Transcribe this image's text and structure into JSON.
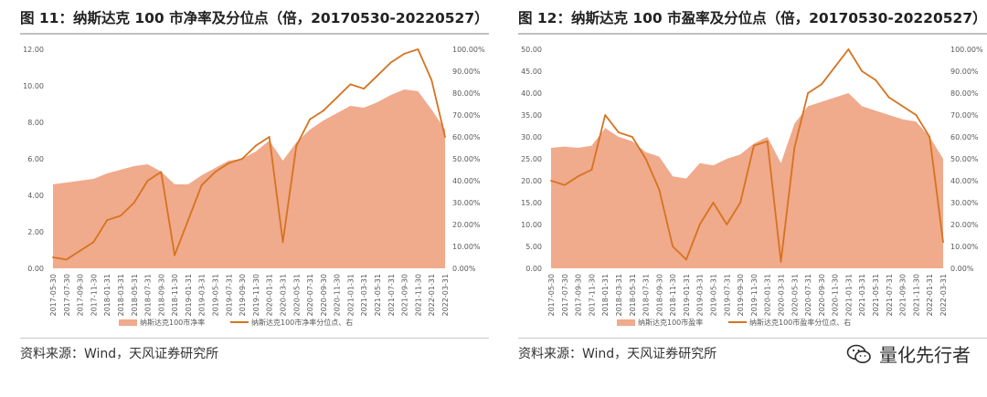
{
  "colors": {
    "area": "#f0aa8c",
    "line": "#d6731f",
    "text": "#595959"
  },
  "charts": [
    {
      "title": "图 11：纳斯达克 100 市净率及分位点（倍，20170530-20220527）",
      "source": "资料来源：Wind，天风证券研究所",
      "chart_data": {
        "type": "area",
        "x": [
          "2017-05-30",
          "2017-07-30",
          "2017-09-30",
          "2017-11-30",
          "2018-01-31",
          "2018-03-31",
          "2018-05-31",
          "2018-07-31",
          "2018-09-30",
          "2018-11-30",
          "2019-01-31",
          "2019-03-31",
          "2019-05-31",
          "2019-07-31",
          "2019-09-30",
          "2019-11-30",
          "2020-01-31",
          "2020-03-31",
          "2020-05-31",
          "2020-07-31",
          "2020-09-30",
          "2020-11-30",
          "2021-01-31",
          "2021-03-31",
          "2021-05-31",
          "2021-07-31",
          "2021-09-30",
          "2021-11-30",
          "2022-01-31",
          "2022-03-31"
        ],
        "y_left_ticks": [
          "0.00",
          "2.00",
          "4.00",
          "6.00",
          "8.00",
          "10.00",
          "12.00"
        ],
        "y_right_ticks": [
          "0.00%",
          "10.00%",
          "20.00%",
          "30.00%",
          "40.00%",
          "50.00%",
          "60.00%",
          "70.00%",
          "80.00%",
          "90.00%",
          "100.00%"
        ],
        "ylim_left": [
          0,
          12
        ],
        "ylim_right": [
          0,
          100
        ],
        "series": [
          {
            "name": "纳斯达克100市净率",
            "axis": "left",
            "kind": "area",
            "values": [
              4.6,
              4.7,
              4.8,
              4.9,
              5.2,
              5.4,
              5.6,
              5.7,
              5.3,
              4.6,
              4.6,
              5.1,
              5.5,
              5.9,
              6.0,
              6.4,
              7.0,
              5.9,
              6.9,
              7.6,
              8.1,
              8.5,
              8.9,
              8.8,
              9.1,
              9.5,
              9.8,
              9.7,
              8.7,
              7.6
            ]
          },
          {
            "name": "纳斯达克100市净率分位点、右",
            "axis": "right",
            "kind": "line",
            "values": [
              5,
              4,
              8,
              12,
              22,
              24,
              30,
              40,
              44,
              6,
              22,
              38,
              44,
              48,
              50,
              56,
              60,
              12,
              56,
              68,
              72,
              78,
              84,
              82,
              88,
              94,
              98,
              100,
              86,
              60
            ]
          }
        ]
      },
      "legend": [
        "纳斯达克100市净率",
        "纳斯达克100市净率分位点、右"
      ]
    },
    {
      "title": "图 12：纳斯达克 100 市盈率及分位点（倍，20170530-20220527）",
      "source": "资料来源：Wind，天风证券研究所",
      "chart_data": {
        "type": "area",
        "x": [
          "2017-05-30",
          "2017-07-30",
          "2017-09-30",
          "2017-11-30",
          "2018-01-31",
          "2018-03-31",
          "2018-05-31",
          "2018-07-31",
          "2018-09-30",
          "2018-11-30",
          "2019-01-31",
          "2019-03-31",
          "2019-05-31",
          "2019-07-31",
          "2019-09-30",
          "2019-11-30",
          "2020-01-31",
          "2020-03-31",
          "2020-05-31",
          "2020-07-31",
          "2020-09-30",
          "2020-11-30",
          "2021-01-31",
          "2021-03-31",
          "2021-05-31",
          "2021-07-31",
          "2021-09-30",
          "2021-11-30",
          "2022-01-31",
          "2022-03-31"
        ],
        "y_left_ticks": [
          "0.00",
          "5.00",
          "10.00",
          "15.00",
          "20.00",
          "25.00",
          "30.00",
          "35.00",
          "40.00",
          "45.00",
          "50.00"
        ],
        "y_right_ticks": [
          "0.00%",
          "10.00%",
          "20.00%",
          "30.00%",
          "40.00%",
          "50.00%",
          "60.00%",
          "70.00%",
          "80.00%",
          "90.00%",
          "100.00%"
        ],
        "ylim_left": [
          0,
          50
        ],
        "ylim_right": [
          0,
          100
        ],
        "series": [
          {
            "name": "纳斯达克100市盈率",
            "axis": "left",
            "kind": "area",
            "values": [
              27.5,
              27.8,
              27.5,
              28.0,
              32.0,
              30.0,
              29.0,
              26.5,
              25.5,
              21.0,
              20.5,
              24.0,
              23.5,
              25.0,
              26.0,
              28.5,
              30.0,
              24.0,
              33.0,
              37.0,
              38.0,
              39.0,
              40.0,
              37.0,
              36.0,
              35.0,
              34.0,
              33.5,
              30.0,
              25.0
            ]
          },
          {
            "name": "纳斯达克100市盈率分位点、右",
            "axis": "right",
            "kind": "line",
            "values": [
              40,
              38,
              42,
              45,
              70,
              62,
              60,
              50,
              36,
              10,
              4,
              20,
              30,
              20,
              30,
              56,
              58,
              3,
              55,
              80,
              84,
              92,
              100,
              90,
              86,
              78,
              74,
              70,
              60,
              12
            ]
          }
        ]
      },
      "legend": [
        "纳斯达克100市盈率",
        "纳斯达克100市盈率分位点、右"
      ]
    }
  ],
  "watermark": "量化先行者"
}
